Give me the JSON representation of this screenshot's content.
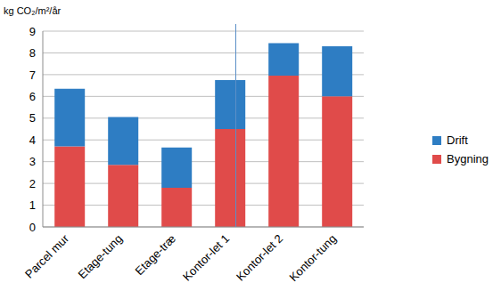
{
  "chart_data": {
    "type": "bar",
    "y_label": "kg CO₂/m²/år",
    "categories": [
      "Parcel mur",
      "Etage-tung",
      "Etage-træ",
      "Kontor-let 1",
      "Kontor-let 2",
      "Kontor-tung"
    ],
    "series": [
      {
        "name": "Bygning",
        "color": "#e04b4a",
        "values": [
          3.7,
          2.85,
          1.8,
          4.5,
          6.95,
          6.0
        ]
      },
      {
        "name": "Drift",
        "color": "#2e7dc3",
        "values": [
          2.65,
          2.2,
          1.85,
          2.25,
          1.5,
          2.3
        ]
      }
    ],
    "stacked": true,
    "ylim": [
      0,
      9
    ],
    "yticks": [
      0,
      1,
      2,
      3,
      4,
      5,
      6,
      7,
      8,
      9
    ],
    "grid": true,
    "legend": "right"
  }
}
